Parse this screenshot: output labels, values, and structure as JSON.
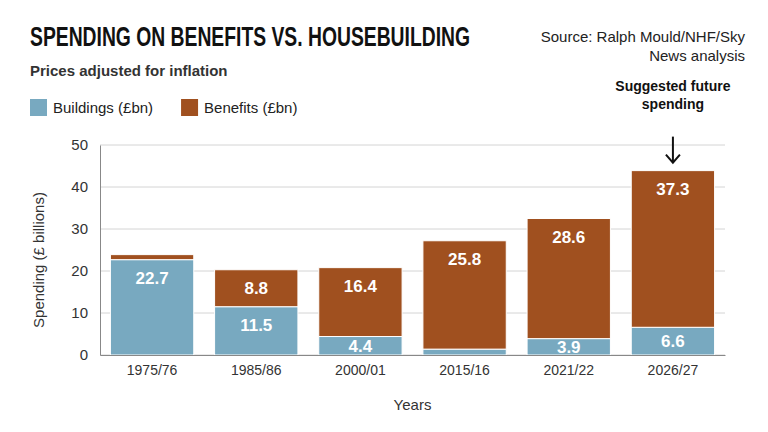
{
  "chart_data": {
    "type": "bar",
    "stacked": true,
    "title": "SPENDING ON BENEFITS VS. HOUSEBUILDING",
    "subtitle": "Prices adjusted for inflation",
    "source": [
      "Source: Ralph Mould/NHF/Sky",
      "News analysis"
    ],
    "x_label": "Years",
    "y_label": "Spending (£ billions)",
    "categories": [
      "1975/76",
      "1985/86",
      "2000/01",
      "2015/16",
      "2021/22",
      "2026/27"
    ],
    "series": [
      {
        "name": "Buildings (£bn)",
        "color": "#78a9c0",
        "values": [
          22.7,
          11.5,
          4.4,
          1.4,
          3.9,
          6.6
        ],
        "value_labels": [
          "22.7",
          "11.5",
          "4.4",
          null,
          "3.9",
          "6.6"
        ]
      },
      {
        "name": "Benefits (£bn)",
        "color": "#a0501f",
        "values": [
          1.2,
          8.8,
          16.4,
          25.8,
          28.6,
          37.3
        ],
        "value_labels": [
          null,
          "8.8",
          "16.4",
          "25.8",
          "28.6",
          "37.3"
        ]
      }
    ],
    "ylim": [
      0,
      50
    ],
    "yticks": [
      0,
      10,
      20,
      30,
      40,
      50
    ],
    "grid": true,
    "legend": "top-left",
    "data_labels": true,
    "annotations": [
      {
        "text": [
          "Suggested future",
          "spending"
        ],
        "x": "2026/27"
      }
    ]
  }
}
